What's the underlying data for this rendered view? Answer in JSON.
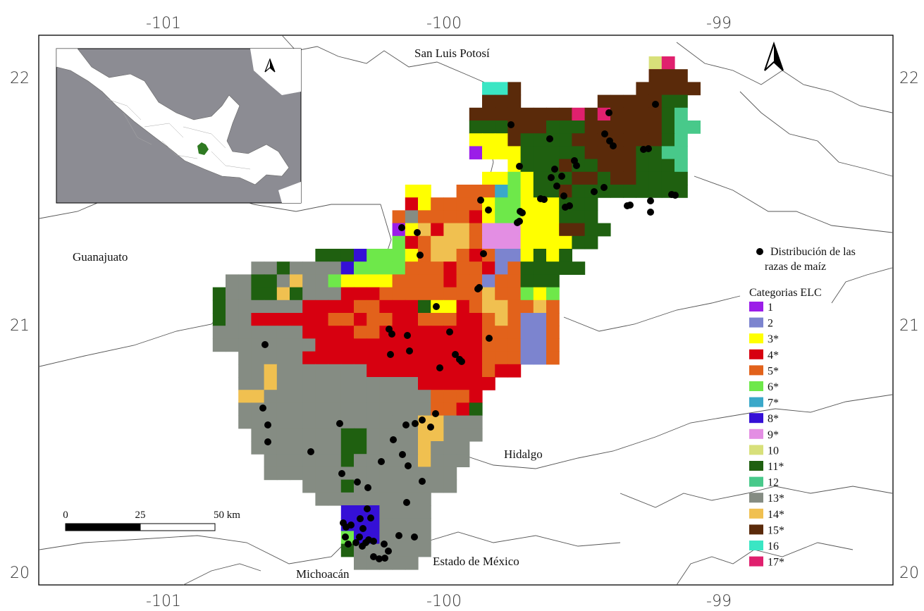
{
  "axes": {
    "top_ticks": [
      "-101",
      "-100",
      "-99"
    ],
    "bottom_ticks": [
      "-101",
      "-100",
      "-99"
    ],
    "left_ticks": [
      "22",
      "21",
      "20"
    ],
    "right_ticks": [
      "22",
      "21",
      "20"
    ]
  },
  "state_labels": {
    "san_luis_potosi": "San Luis Potosí",
    "guanajuato": "Guanajuato",
    "hidalgo": "Hidalgo",
    "estado_de_mexico": "Estado de México",
    "michoacan": "Michoacán"
  },
  "scale_bar": {
    "labels": [
      "0",
      "25",
      "50 km"
    ]
  },
  "legend": {
    "points_label_line1": "Distribución de las",
    "points_label_line2": "razas de maíz",
    "categories_title": "Categorias ELC",
    "categories": [
      {
        "label": "1",
        "color": "#9b1de8"
      },
      {
        "label": "2",
        "color": "#7c84cf"
      },
      {
        "label": "3*",
        "color": "#ffff00"
      },
      {
        "label": "4*",
        "color": "#d70010"
      },
      {
        "label": "5*",
        "color": "#e2621b"
      },
      {
        "label": "6*",
        "color": "#6ee84a"
      },
      {
        "label": "7*",
        "color": "#3aa8c9"
      },
      {
        "label": "8*",
        "color": "#3510d6"
      },
      {
        "label": "9*",
        "color": "#e38ee3"
      },
      {
        "label": "10",
        "color": "#d8e07a"
      },
      {
        "label": "11*",
        "color": "#1f6010"
      },
      {
        "label": "12",
        "color": "#48c98a"
      },
      {
        "label": "13*",
        "color": "#858c83"
      },
      {
        "label": "14*",
        "color": "#f0c050"
      },
      {
        "label": "15*",
        "color": "#5a2a0a"
      },
      {
        "label": "16",
        "color": "#3ae6c4"
      },
      {
        "label": "17*",
        "color": "#e0206e"
      }
    ]
  },
  "colors": {
    "inset_land": "#ffffff",
    "inset_water": "#8c8c93",
    "study_area_inset": "#2f7a22",
    "points": "#000000"
  },
  "icons": [
    "north-arrow-icon",
    "north-arrow-inset-icon"
  ]
}
